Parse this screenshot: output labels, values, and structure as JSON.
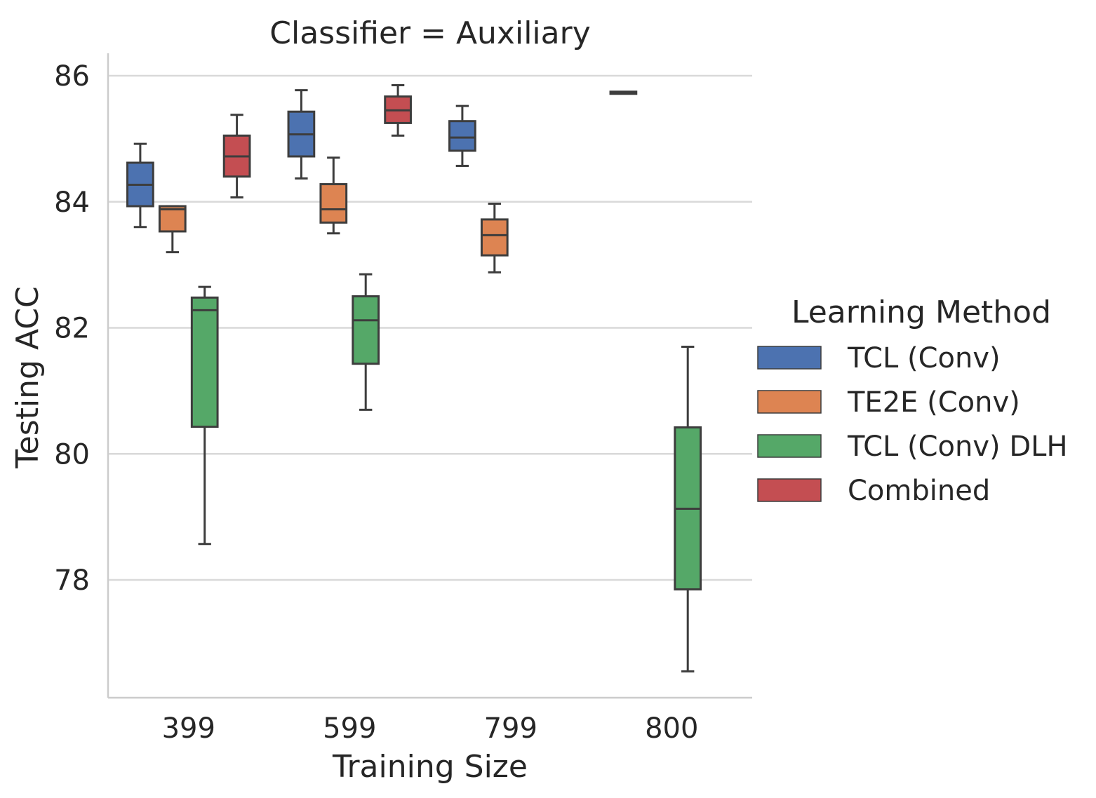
{
  "chart_data": {
    "type": "box",
    "title": "Classifier = Auxiliary",
    "xlabel": "Training Size",
    "ylabel": "Testing ACC",
    "categories": [
      "399",
      "599",
      "799",
      "800"
    ],
    "ylim": [
      76.1,
      86.3
    ],
    "yticks": [
      78,
      80,
      82,
      84,
      86
    ],
    "grid": "horizontal",
    "legend": {
      "title": "Learning Method",
      "placement": "right"
    },
    "series": [
      {
        "name": "TCL (Conv)",
        "color": "#4c72b0",
        "boxes": [
          {
            "category": "399",
            "whislo": 83.6,
            "q1": 83.93,
            "med": 84.27,
            "q3": 84.62,
            "whishi": 84.92
          },
          {
            "category": "599",
            "whislo": 84.37,
            "q1": 84.72,
            "med": 85.07,
            "q3": 85.43,
            "whishi": 85.77
          },
          {
            "category": "799",
            "whislo": 84.57,
            "q1": 84.81,
            "med": 85.02,
            "q3": 85.28,
            "whishi": 85.52
          },
          {
            "category": "800",
            "whislo": 85.73,
            "q1": 85.73,
            "med": 85.73,
            "q3": 85.73,
            "whishi": 85.73
          }
        ]
      },
      {
        "name": "TE2E (Conv)",
        "color": "#dd8452",
        "boxes": [
          {
            "category": "399",
            "whislo": 83.2,
            "q1": 83.53,
            "med": 83.88,
            "q3": 83.93,
            "whishi": 83.93
          },
          {
            "category": "599",
            "whislo": 83.5,
            "q1": 83.67,
            "med": 83.88,
            "q3": 84.28,
            "whishi": 84.7
          },
          {
            "category": "799",
            "whislo": 82.88,
            "q1": 83.15,
            "med": 83.47,
            "q3": 83.72,
            "whishi": 83.97
          },
          null
        ]
      },
      {
        "name": "TCL (Conv) DLH",
        "color": "#55a868",
        "boxes": [
          {
            "category": "399",
            "whislo": 78.57,
            "q1": 80.43,
            "med": 82.28,
            "q3": 82.48,
            "whishi": 82.65
          },
          {
            "category": "599",
            "whislo": 80.7,
            "q1": 81.43,
            "med": 82.12,
            "q3": 82.5,
            "whishi": 82.85
          },
          null,
          {
            "category": "800",
            "whislo": 76.55,
            "q1": 77.85,
            "med": 79.13,
            "q3": 80.42,
            "whishi": 81.7
          }
        ]
      },
      {
        "name": "Combined",
        "color": "#c44e52",
        "boxes": [
          {
            "category": "399",
            "whislo": 84.07,
            "q1": 84.4,
            "med": 84.72,
            "q3": 85.05,
            "whishi": 85.38
          },
          {
            "category": "599",
            "whislo": 85.05,
            "q1": 85.25,
            "med": 85.45,
            "q3": 85.67,
            "whishi": 85.85
          },
          null,
          null
        ]
      }
    ]
  }
}
